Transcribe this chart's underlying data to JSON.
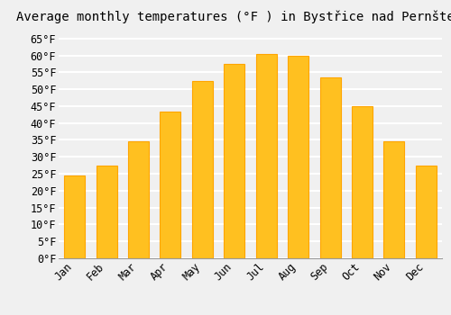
{
  "title": "Average monthly temperatures (°F ) in Bystřice nad Pernštejnem",
  "months": [
    "Jan",
    "Feb",
    "Mar",
    "Apr",
    "May",
    "Jun",
    "Jul",
    "Aug",
    "Sep",
    "Oct",
    "Nov",
    "Dec"
  ],
  "values": [
    24.5,
    27.5,
    34.5,
    43.5,
    52.5,
    57.5,
    60.5,
    60.0,
    53.5,
    45.0,
    34.5,
    27.5
  ],
  "bar_color": "#FFC020",
  "bar_edge_color": "#FFA500",
  "background_color": "#F0F0F0",
  "grid_color": "#FFFFFF",
  "ylim": [
    0,
    68
  ],
  "yticks": [
    0,
    5,
    10,
    15,
    20,
    25,
    30,
    35,
    40,
    45,
    50,
    55,
    60,
    65
  ],
  "title_fontsize": 10,
  "tick_fontsize": 8.5,
  "font_family": "monospace",
  "bar_width": 0.65
}
